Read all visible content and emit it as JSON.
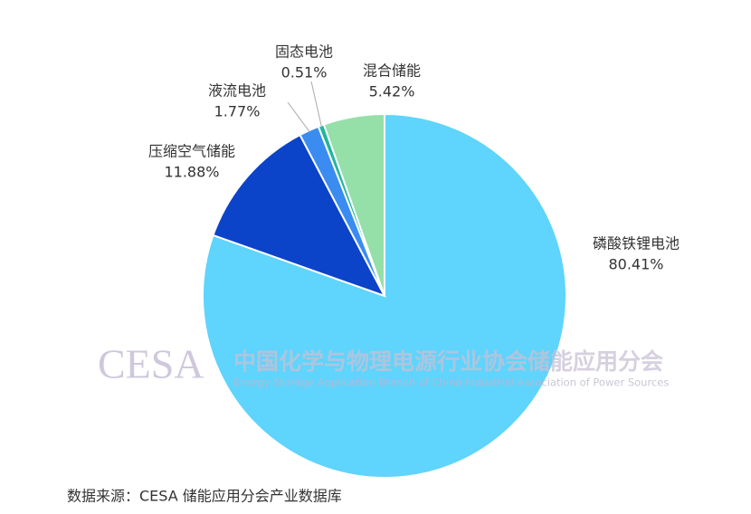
{
  "chart_data": {
    "type": "pie",
    "categories": [
      "磷酸铁锂电池",
      "压缩空气储能",
      "液流电池",
      "固态电池",
      "混合储能"
    ],
    "values": [
      80.41,
      11.88,
      1.77,
      0.51,
      5.42
    ],
    "value_labels": [
      "80.41%",
      "11.88%",
      "1.77%",
      "0.51%",
      "5.42%"
    ],
    "colors": [
      "#5fd4fc",
      "#0b43c9",
      "#3a8cf0",
      "#22b5a0",
      "#95dfa9"
    ],
    "watermark": {
      "logo": "CESA",
      "name": "中国化学与物理电源行业协会储能应用分会",
      "name_en": "Energy Storage Application Branch of China Industrial Association of Power Sources"
    },
    "source": "数据来源：CESA 储能应用分会产业数据库"
  }
}
